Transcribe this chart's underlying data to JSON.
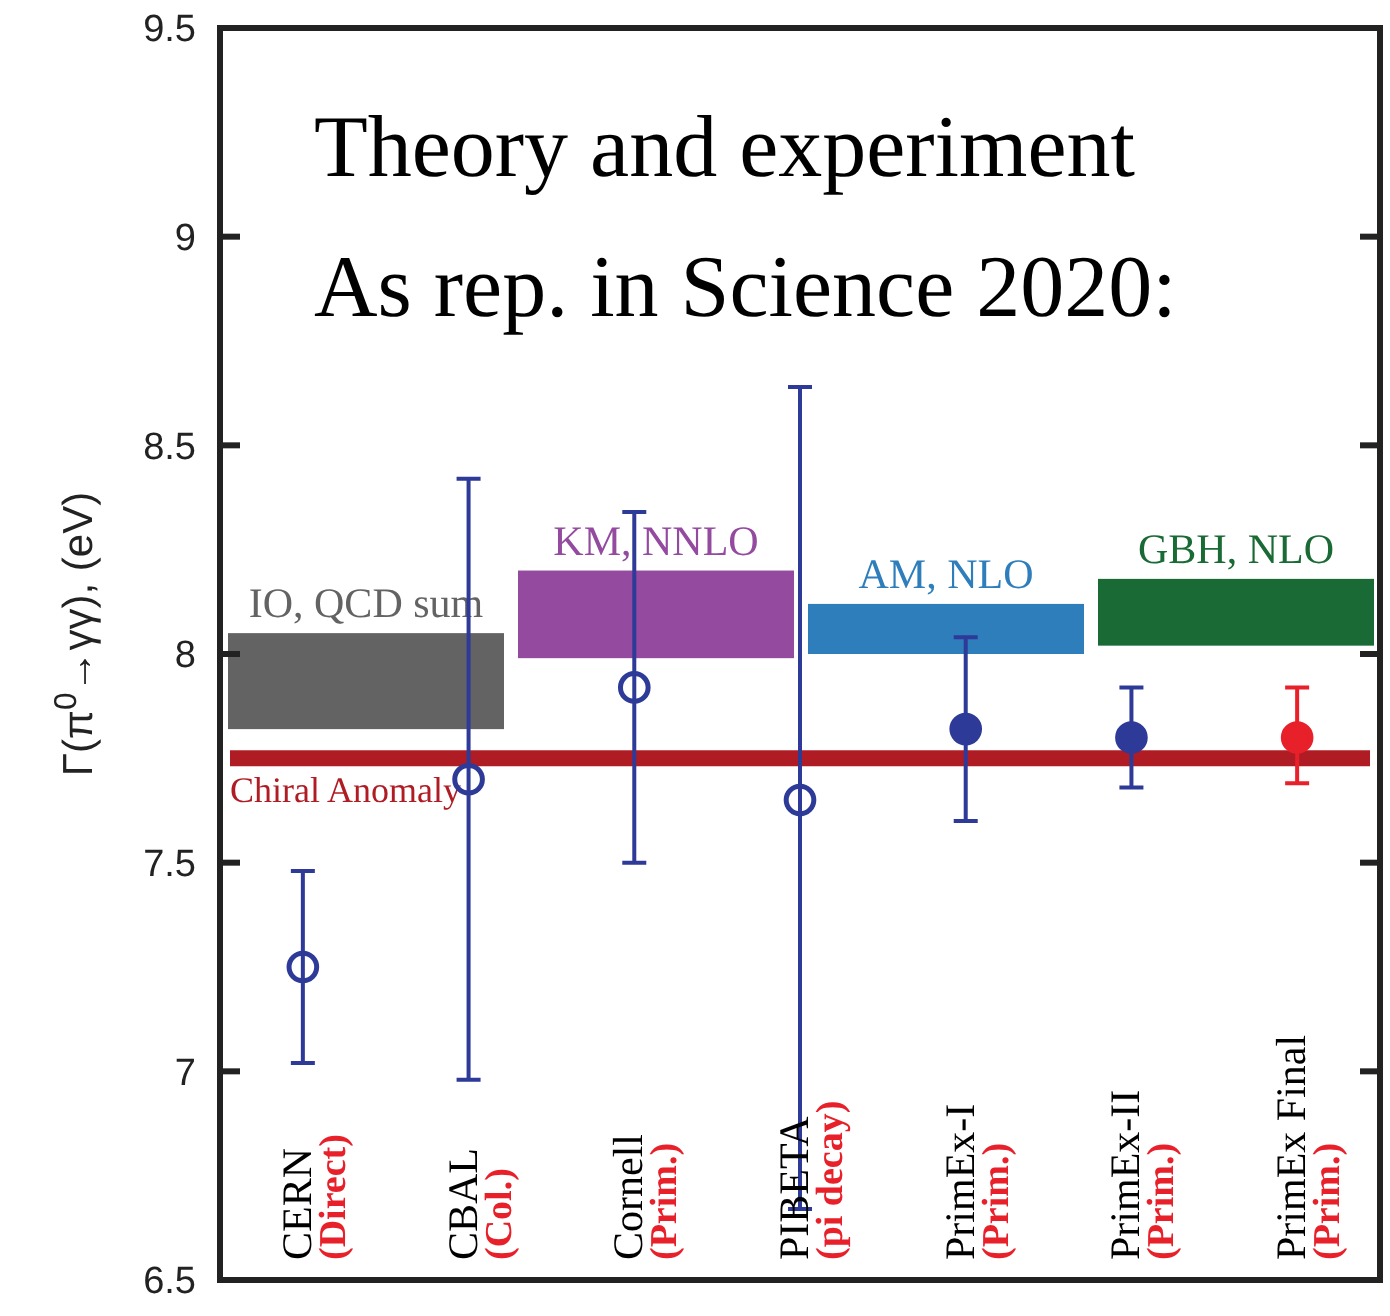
{
  "chart_data": {
    "type": "scatter",
    "title": "Theory and experiment",
    "subtitle": "As rep. in Science 2020:",
    "ylabel": "Γ(π$^{0}$→γγ), (eV)",
    "categories": [
      "CERN\n(Direct)",
      "CBAL\n(Col.)",
      "Cornell\n(Prim.)",
      "PIBETA\n(pi decay)",
      "PrimEx-I\n(Prim.)",
      "PrimEx-II\n(Prim.)",
      "PrimEx Final\n(Prim.)"
    ],
    "series": [
      {
        "color": "#2e3a98",
        "values": [
          7.25,
          7.7,
          7.92,
          7.65,
          null,
          null,
          null
        ],
        "errors": [
          [
            7.02,
            7.48
          ],
          [
            6.98,
            8.42
          ],
          [
            7.5,
            8.34
          ],
          [
            6.67,
            8.64
          ],
          null,
          null,
          null
        ]
      },
      {
        "color": "#2e3a98",
        "values": [
          null,
          null,
          null,
          null,
          7.82,
          7.8,
          null
        ],
        "errors": [
          null,
          null,
          null,
          null,
          [
            7.6,
            8.04
          ],
          [
            7.68,
            7.92
          ],
          null
        ]
      },
      {
        "color": "#e8202a",
        "values": [
          null,
          null,
          null,
          null,
          null,
          null,
          7.8
        ],
        "errors": [
          null,
          null,
          null,
          null,
          null,
          null,
          [
            7.69,
            7.92
          ]
        ]
      }
    ],
    "bands": [
      {
        "axis": "y",
        "from": 7.82,
        "to": 8.05,
        "label": "IO, QCD sum",
        "color": "#636363"
      },
      {
        "axis": "y",
        "from": 7.99,
        "to": 8.2,
        "label": "KM, NNLO",
        "color": "#934a9f"
      },
      {
        "axis": "y",
        "from": 8.0,
        "to": 8.12,
        "label": "AM, NLO",
        "color": "#2e7ebc"
      },
      {
        "axis": "y",
        "from": 8.02,
        "to": 8.18,
        "label": "GBH, NLO",
        "color": "#1a6a35"
      }
    ],
    "ref_lines": [
      {
        "axis": "y",
        "value": 7.75,
        "label": "Chiral Anomaly",
        "color": "#b01c24"
      }
    ],
    "ylim": [
      6.5,
      9.5
    ],
    "yticks": [
      6.5,
      7,
      7.5,
      8,
      8.5,
      9,
      9.5
    ],
    "marker": "circle",
    "grid": false
  }
}
